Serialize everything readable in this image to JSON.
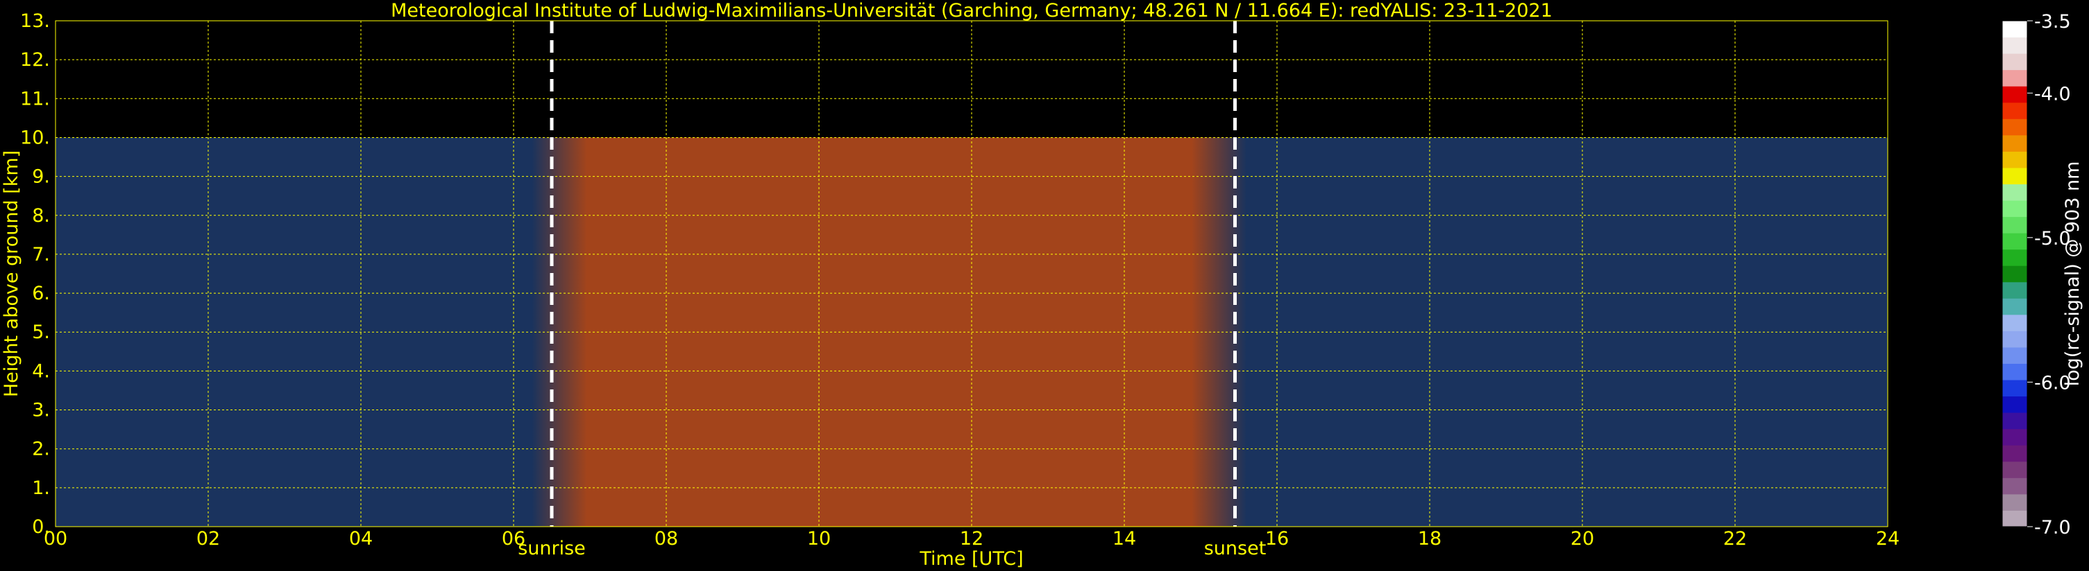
{
  "chart_data": {
    "type": "heatmap",
    "title": "Meteorological Institute of Ludwig-Maximilians-Universität (Garching, Germany; 48.261 N / 11.664 E):    redYALIS: 23-11-2021",
    "xlabel": "Time [UTC]",
    "ylabel": "Height above ground [km]",
    "xlim": [
      0,
      24
    ],
    "ylim": [
      0,
      13
    ],
    "xticks": [
      0,
      2,
      4,
      6,
      8,
      10,
      12,
      14,
      16,
      18,
      20,
      22,
      24
    ],
    "xtick_labels": [
      "00",
      "02",
      "04",
      "06",
      "08",
      "10",
      "12",
      "14",
      "16",
      "18",
      "20",
      "22",
      "24"
    ],
    "yticks": [
      0,
      1,
      2,
      3,
      4,
      5,
      6,
      7,
      8,
      9,
      10,
      11,
      12,
      13
    ],
    "ytick_labels": [
      "0.",
      "1.",
      "2.",
      "3.",
      "4.",
      "5.",
      "6.",
      "7.",
      "8.",
      "9.",
      "10.",
      "11.",
      "12.",
      "13."
    ],
    "grid": true,
    "data_top_km": 10,
    "events": [
      {
        "label": "sunrise",
        "time": 6.5
      },
      {
        "label": "sunset",
        "time": 15.45
      }
    ],
    "colorbar": {
      "label": "log(rc-signal) @ 903 nm",
      "range": [
        -7.0,
        -3.5
      ],
      "ticks": [
        -3.5,
        -4.0,
        -5.0,
        -6.0,
        -7.0
      ],
      "tick_labels": [
        "-3.5",
        "-4.0",
        "-5.0",
        "-6.0",
        "-7.0"
      ],
      "colors": [
        "#b8a8b8",
        "#a08aa0",
        "#8a5a8a",
        "#7a3a7a",
        "#6a1a7a",
        "#5a108a",
        "#3a10a0",
        "#1010c0",
        "#1a3ae0",
        "#4a70f0",
        "#7090f0",
        "#90a8f0",
        "#a0b8f0",
        "#50b0b0",
        "#30a080",
        "#108a10",
        "#20b020",
        "#40d040",
        "#60e060",
        "#80f080",
        "#a0f0a0",
        "#f0f000",
        "#f0c000",
        "#f09000",
        "#f06000",
        "#f03000",
        "#e00000",
        "#f0a0a0",
        "#e8d0d0",
        "#f0e8e8",
        "#ffffff"
      ]
    }
  }
}
